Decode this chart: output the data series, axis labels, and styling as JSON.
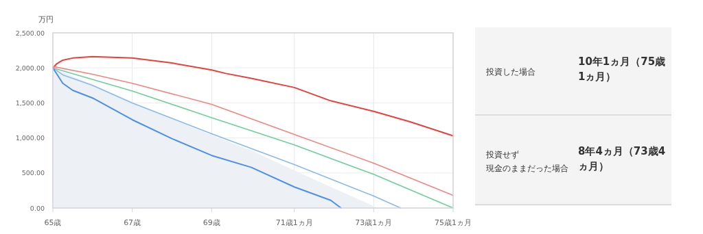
{
  "chart_data": [
    {
      "type": "line",
      "ylabel": "万円",
      "xlim": [
        65,
        75.0833
      ],
      "xticks": [
        {
          "value": 65,
          "label": "65歳"
        },
        {
          "value": 67,
          "label": "67歳"
        },
        {
          "value": 69,
          "label": "69歳"
        },
        {
          "value": 71.0833,
          "label": "71歳1ヵ月"
        },
        {
          "value": 73.0833,
          "label": "73歳1ヵ月"
        },
        {
          "value": 75.0833,
          "label": "75歳1ヵ月"
        }
      ],
      "ylim": [
        0,
        2500
      ],
      "yticks": [
        {
          "value": 0,
          "label": "0.00"
        },
        {
          "value": 500,
          "label": "500.00"
        },
        {
          "value": 1000,
          "label": "1,000.00"
        },
        {
          "value": 1500,
          "label": "1,500.00"
        },
        {
          "value": 2000,
          "label": "2,000.00"
        },
        {
          "value": 2500,
          "label": "2,500.00"
        }
      ],
      "grid": true,
      "series": [
        {
          "type": "area",
          "color": "#edf0f5",
          "x": [
            65,
            66,
            67,
            68,
            69,
            70,
            71,
            72,
            73,
            73.17
          ],
          "values": [
            2000,
            1760,
            1510,
            1270,
            1040,
            820,
            560,
            300,
            50,
            0
          ]
        },
        {
          "color": "#e8403a",
          "x": [
            65,
            65.1,
            65.25,
            65.5,
            65.75,
            66,
            66.5,
            67,
            68,
            69,
            69.36,
            70,
            71.0833,
            72,
            73.0833,
            74,
            75.0833
          ],
          "values": [
            2000,
            2060,
            2110,
            2140,
            2150,
            2160,
            2150,
            2140,
            2070,
            1970,
            1920,
            1850,
            1720,
            1530,
            1380,
            1230,
            1030
          ]
        },
        {
          "color": "#f2857f",
          "x": [
            65,
            66,
            67,
            69,
            71.0833,
            73.0833,
            75.0833
          ],
          "values": [
            2020,
            1910,
            1780,
            1480,
            1050,
            640,
            180
          ]
        },
        {
          "color": "#6dcf9b",
          "x": [
            65,
            67,
            69,
            71.0833,
            73.0833,
            75.0833
          ],
          "values": [
            2000,
            1670,
            1290,
            900,
            480,
            0
          ]
        },
        {
          "color": "#8ab9f0",
          "x": [
            65,
            65.25,
            66,
            67,
            69,
            71.0833,
            73.0833,
            73.76
          ],
          "values": [
            2000,
            1900,
            1750,
            1500,
            1060,
            620,
            170,
            0
          ]
        },
        {
          "color": "#4a90e8",
          "x": [
            65,
            65.25,
            65.5,
            66,
            67,
            68,
            69,
            70,
            71.0833,
            72,
            72.26
          ],
          "values": [
            2000,
            1780,
            1680,
            1570,
            1260,
            990,
            750,
            580,
            300,
            110,
            0
          ]
        }
      ]
    },
    {
      "type": "other",
      "annotations": [
        "投資した場合",
        "10年1ヵ月（75歳1ヵ月）",
        "投資せず",
        "現金のままだった場合",
        "8年4ヵ月（73歳4ヵ月）"
      ]
    }
  ]
}
